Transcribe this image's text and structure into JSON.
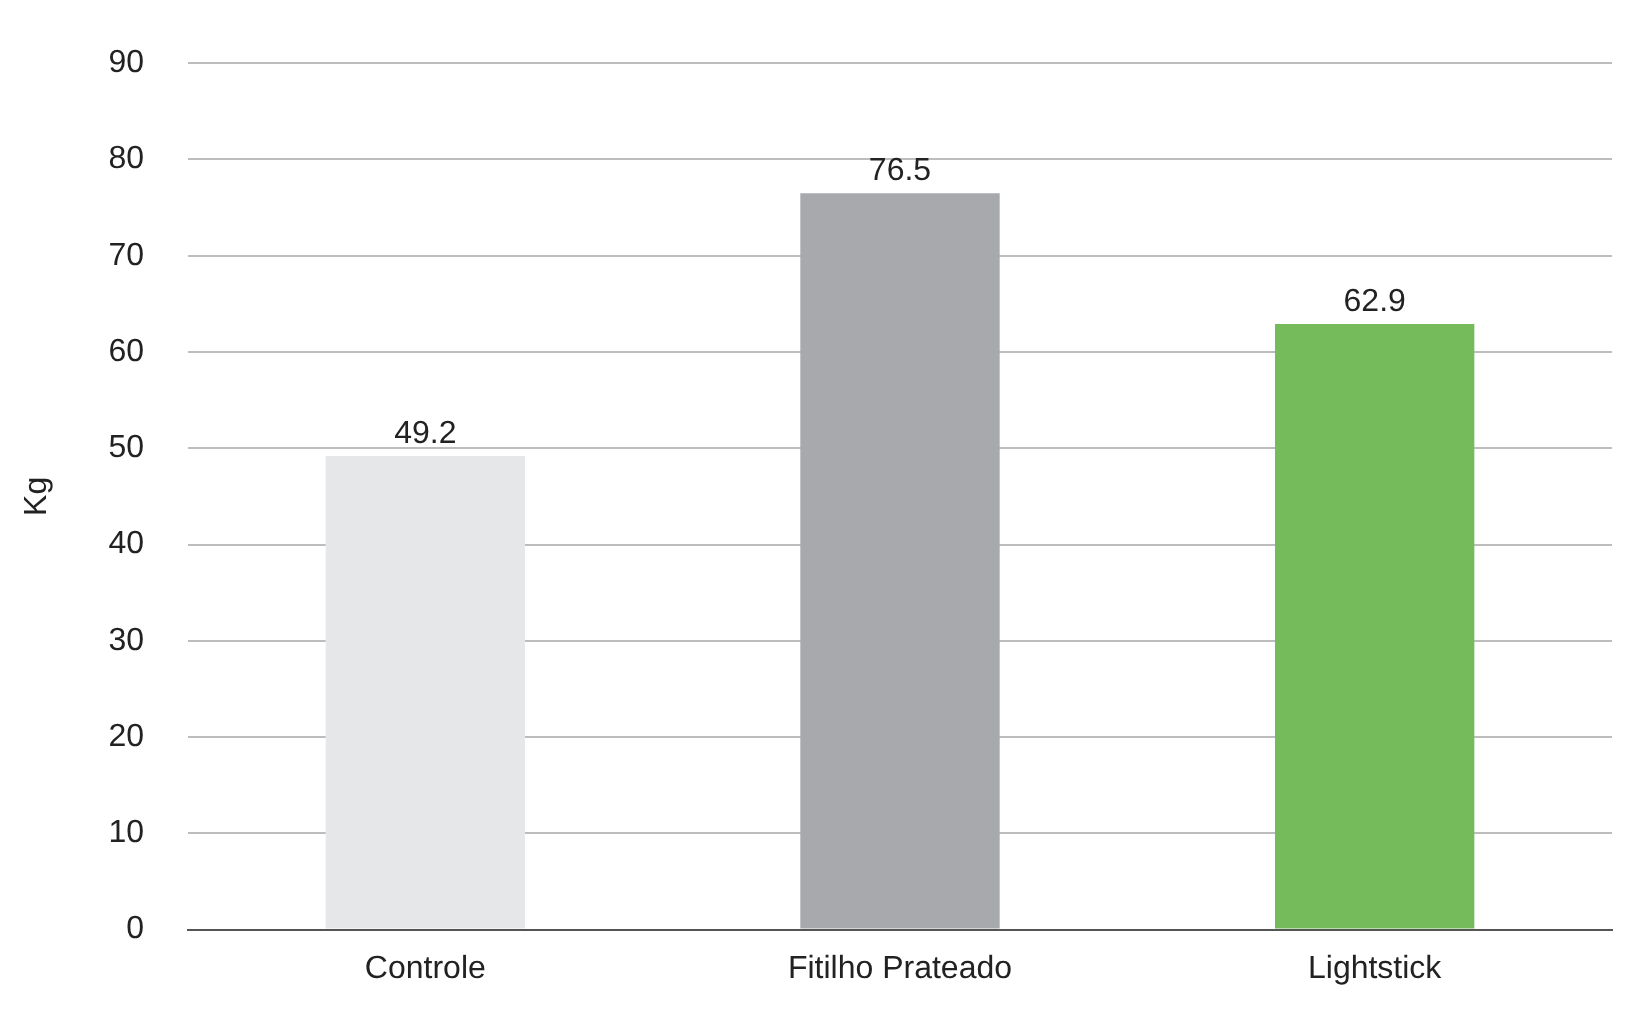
{
  "chart_data": {
    "type": "bar",
    "ylabel": "Kg",
    "categories": [
      "Controle",
      "Fitilho Prateado",
      "Lightstick"
    ],
    "values": [
      49.2,
      76.5,
      62.9
    ],
    "colors": [
      "#e6e7e8",
      "#a7a9ac",
      "#76bb5b"
    ],
    "ylim": [
      0,
      90
    ],
    "yticks": [
      0,
      10,
      20,
      30,
      40,
      50,
      60,
      70,
      80,
      90
    ],
    "grid": "y",
    "data_labels": true,
    "legend": false
  }
}
